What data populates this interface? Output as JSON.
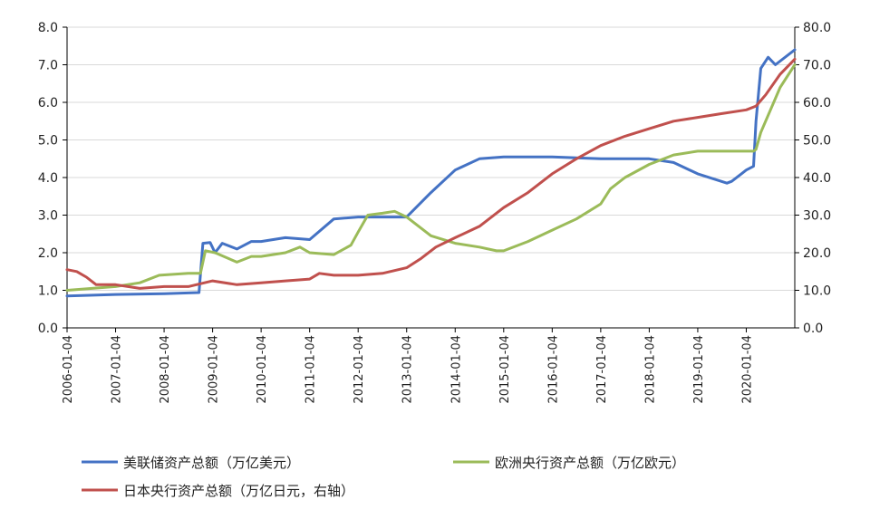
{
  "chart_data": {
    "type": "line",
    "left_axis": {
      "ticks": [
        "0.0",
        "1.0",
        "2.0",
        "3.0",
        "4.0",
        "5.0",
        "6.0",
        "7.0",
        "8.0"
      ],
      "ylim": [
        0,
        8
      ]
    },
    "right_axis": {
      "ticks": [
        "0.0",
        "10.0",
        "20.0",
        "30.0",
        "40.0",
        "50.0",
        "60.0",
        "70.0",
        "80.0"
      ],
      "ylim": [
        0,
        80
      ]
    },
    "x_tick_labels": [
      "2006-01-04",
      "2007-01-04",
      "2008-01-04",
      "2009-01-04",
      "2010-01-04",
      "2011-01-04",
      "2012-01-04",
      "2013-01-04",
      "2014-01-04",
      "2015-01-04",
      "2016-01-04",
      "2017-01-04",
      "2018-01-04",
      "2019-01-04",
      "2020-01-04"
    ],
    "xlim": [
      2006.0,
      2021.0
    ],
    "grid": "horizontal",
    "series": [
      {
        "name": "美联储资产总额（万亿美元）",
        "axis": "left",
        "color": "#4472C4",
        "x": [
          2006.0,
          2007.0,
          2008.0,
          2008.5,
          2008.72,
          2008.8,
          2008.95,
          2009.05,
          2009.2,
          2009.5,
          2009.8,
          2010.0,
          2010.5,
          2011.0,
          2011.5,
          2012.0,
          2012.5,
          2013.0,
          2013.5,
          2014.0,
          2014.5,
          2015.0,
          2016.0,
          2017.0,
          2017.5,
          2018.0,
          2018.5,
          2019.0,
          2019.6,
          2019.7,
          2019.9,
          2020.0,
          2020.15,
          2020.2,
          2020.3,
          2020.45,
          2020.6,
          2021.0
        ],
        "y": [
          0.85,
          0.89,
          0.91,
          0.93,
          0.94,
          2.25,
          2.27,
          2.0,
          2.25,
          2.1,
          2.3,
          2.3,
          2.4,
          2.35,
          2.9,
          2.95,
          2.95,
          2.95,
          3.6,
          4.2,
          4.5,
          4.55,
          4.55,
          4.5,
          4.5,
          4.5,
          4.4,
          4.1,
          3.85,
          3.9,
          4.1,
          4.2,
          4.3,
          5.5,
          6.9,
          7.2,
          7.0,
          7.4
        ]
      },
      {
        "name": "欧洲央行资产总额（万亿欧元）",
        "axis": "right",
        "color": "#9BBB59",
        "x": [
          2006.0,
          2007.0,
          2007.5,
          2007.9,
          2008.5,
          2008.75,
          2008.85,
          2009.05,
          2009.5,
          2009.8,
          2010.0,
          2010.5,
          2010.8,
          2011.0,
          2011.5,
          2011.85,
          2012.0,
          2012.2,
          2012.5,
          2012.75,
          2013.0,
          2013.5,
          2014.0,
          2014.5,
          2014.85,
          2015.0,
          2015.5,
          2016.0,
          2016.5,
          2017.0,
          2017.2,
          2017.5,
          2018.0,
          2018.5,
          2019.0,
          2019.5,
          2020.0,
          2020.15,
          2020.2,
          2020.3,
          2020.5,
          2020.7,
          2021.0
        ],
        "y": [
          10.0,
          11.0,
          12.0,
          14.0,
          14.5,
          14.5,
          20.5,
          20.0,
          17.5,
          19.0,
          19.0,
          20.0,
          21.5,
          20.0,
          19.5,
          22.0,
          25.5,
          30.0,
          30.5,
          31.0,
          29.5,
          24.5,
          22.5,
          21.5,
          20.5,
          20.5,
          23.0,
          26.0,
          29.0,
          33.0,
          37.0,
          40.0,
          43.5,
          46.0,
          47.0,
          47.0,
          47.0,
          47.0,
          47.5,
          52.0,
          58.0,
          64.0,
          70.0
        ]
      },
      {
        "name": "日本央行资产总额（万亿日元，右轴）",
        "axis": "right",
        "color": "#C0504D",
        "x": [
          2006.0,
          2006.2,
          2006.4,
          2006.6,
          2007.0,
          2007.5,
          2008.0,
          2008.5,
          2009.0,
          2009.5,
          2010.0,
          2010.5,
          2011.0,
          2011.2,
          2011.5,
          2012.0,
          2012.5,
          2013.0,
          2013.3,
          2013.6,
          2014.0,
          2014.5,
          2015.0,
          2015.5,
          2016.0,
          2016.5,
          2017.0,
          2017.5,
          2018.0,
          2018.5,
          2019.0,
          2019.5,
          2020.0,
          2020.2,
          2020.4,
          2020.7,
          2021.0
        ],
        "y": [
          15.5,
          15.0,
          13.5,
          11.5,
          11.5,
          10.5,
          11.0,
          11.0,
          12.5,
          11.5,
          12.0,
          12.5,
          13.0,
          14.5,
          14.0,
          14.0,
          14.5,
          16.0,
          18.5,
          21.5,
          24.0,
          27.0,
          32.0,
          36.0,
          41.0,
          45.0,
          48.5,
          51.0,
          53.0,
          55.0,
          56.0,
          57.0,
          58.0,
          59.0,
          62.0,
          67.5,
          71.5
        ]
      }
    ]
  }
}
